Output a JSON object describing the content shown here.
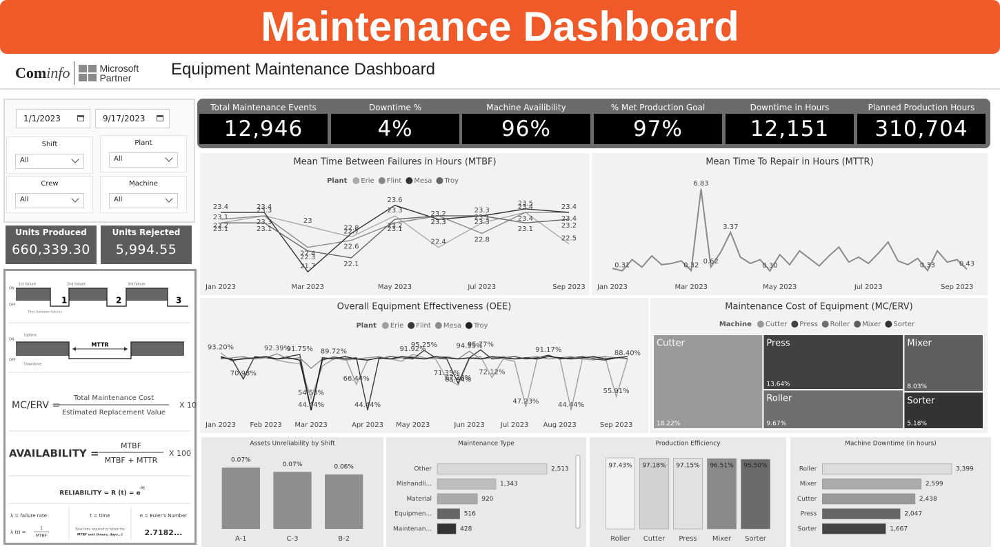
{
  "header": {
    "banner": "Maintenance Dashboard",
    "logo_left": "Com",
    "logo_italic": "info",
    "partner_1": "Microsoft",
    "partner_2": "Partner",
    "title": "Equipment Maintenance Dashboard"
  },
  "filters": {
    "start_date": "1/1/2023",
    "end_date": "9/17/2023",
    "slicers": [
      {
        "label": "Shift",
        "value": "All"
      },
      {
        "label": "Plant",
        "value": "All"
      },
      {
        "label": "Crew",
        "value": "All"
      },
      {
        "label": "Machine",
        "value": "All"
      }
    ]
  },
  "units": [
    {
      "label": "Units Produced",
      "value": "660,339.30"
    },
    {
      "label": "Units Rejected",
      "value": "5,994.55"
    }
  ],
  "kpis": [
    {
      "label": "Total Maintenance Events",
      "value": "12,946"
    },
    {
      "label": "Downtime %",
      "value": "4%"
    },
    {
      "label": "Machine Availibility",
      "value": "96%"
    },
    {
      "label": "% Met Production Goal",
      "value": "97%"
    },
    {
      "label": "Downtime in Hours",
      "value": "12,151"
    },
    {
      "label": "Planned Production Hours",
      "value": "310,704"
    }
  ],
  "formulas": {
    "on": "ON",
    "off": "OFF",
    "failure_1": "1st failure",
    "failure_2": "2nd failure",
    "failure_3": "3rd failure",
    "step_1": "1",
    "step_2": "2",
    "step_3": "3",
    "tbf": "Time between failures",
    "mttr": "MTTR",
    "uptime": "Uptime",
    "downtime": "Downtime",
    "mcerv": "MC/ERV =",
    "mc_num": "Total Maintenance Cost",
    "mc_den": "Estimated Replacement Value",
    "mc_mult": "X 100",
    "avail": "AVAILABILITY =",
    "av_num": "MTBF",
    "av_den": "MTBF + MTTR",
    "av_mult": "X 100",
    "reliability": "RELIABILITY = R (t) = e",
    "rel_exp": "-λt",
    "lambda": "λ = failure rate",
    "lambda_t": "λ (t) =",
    "lambda_num": "1",
    "lambda_den": "MTBF",
    "t": "t = time",
    "t_note_1": "Total time required to follow the",
    "t_note_2": "MTBF unit (hours, days...)",
    "e": "e = Euler's Number",
    "e_value": "2.7182..."
  },
  "chart_data": [
    {
      "type": "line",
      "title": "Mean Time Between Failures in Hours (MTBF)",
      "legend_title": "Plant",
      "data_labels": true,
      "categories": [
        "Jan 2023",
        null,
        "Mar 2023",
        null,
        "May 2023",
        null,
        "Jul 2023",
        null,
        "Sep 2023"
      ],
      "series": [
        {
          "name": "Erie",
          "color": "#aaaaaa",
          "values": [
            23.1,
            23.3,
            23.0,
            22.7,
            23.3,
            22.4,
            23.1,
            23.4,
            22.5
          ]
        },
        {
          "name": "Flint",
          "color": "#888888",
          "values": [
            23.2,
            23.3,
            22.4,
            22.6,
            23.1,
            23.3,
            22.8,
            23.4,
            23.4
          ]
        },
        {
          "name": "Mesa",
          "color": "#333333",
          "values": [
            23.4,
            23.4,
            21.7,
            22.8,
            23.6,
            23.2,
            23.3,
            23.5,
            23.4
          ]
        },
        {
          "name": "Troy",
          "color": "#666666",
          "values": [
            23.1,
            23.1,
            22.3,
            22.1,
            23.2,
            23.3,
            23.3,
            23.1,
            23.2
          ]
        }
      ]
    },
    {
      "type": "line",
      "title": "Mean Time To Repair in Hours (MTTR)",
      "categories": [
        "Jan 2023",
        null,
        null,
        null,
        null,
        null,
        null,
        null,
        "Mar 2023",
        null,
        null,
        null,
        null,
        null,
        null,
        null,
        null,
        "May 2023",
        null,
        null,
        null,
        null,
        null,
        null,
        null,
        null,
        "Jul 2023",
        null,
        null,
        null,
        null,
        null,
        null,
        null,
        null,
        "Sep 2023",
        null
      ],
      "series": [
        {
          "name": "MTTR",
          "color": "#8a8a8a",
          "values": [
            0.5,
            0.31,
            1.2,
            0.6,
            1.5,
            0.8,
            0.9,
            1.1,
            0.32,
            6.83,
            0.62,
            1.8,
            3.37,
            1.4,
            0.9,
            1.2,
            0.3,
            1.6,
            0.8,
            1.9,
            1.3,
            0.7,
            1.5,
            2.2,
            1.0,
            1.4,
            0.9,
            1.7,
            2.6,
            1.1,
            0.8,
            1.3,
            0.33,
            1.9,
            1.0,
            1.2,
            0.43
          ],
          "value_labels": [
            null,
            "0.31",
            null,
            null,
            null,
            null,
            null,
            null,
            "0.32",
            "6.83",
            "0.62",
            null,
            "3.37",
            null,
            null,
            null,
            "0.30",
            null,
            null,
            null,
            null,
            null,
            null,
            null,
            null,
            null,
            null,
            null,
            null,
            null,
            null,
            null,
            "0.33",
            null,
            null,
            null,
            "0.43"
          ]
        }
      ]
    },
    {
      "type": "line",
      "title": "Overall Equipment Effectiveness (OEE)",
      "legend_title": "Plant",
      "categories": [
        "Jan 2023",
        null,
        null,
        null,
        "Feb 2023",
        null,
        null,
        null,
        "Mar 2023",
        null,
        null,
        null,
        null,
        "Apr 2023",
        null,
        null,
        null,
        "May 2023",
        null,
        null,
        null,
        null,
        "Jun 2023",
        null,
        null,
        null,
        "Jul 2023",
        null,
        null,
        null,
        "Aug 2023",
        null,
        null,
        null,
        null,
        "Sep 2023",
        null
      ],
      "series": [
        {
          "name": "Erie",
          "color": "#a0a0a0",
          "values": [
            93.2,
            86,
            89,
            88,
            90,
            87,
            85,
            84,
            54.53,
            82,
            88,
            90,
            66.44,
            87,
            89,
            88,
            86,
            91.92,
            89,
            88,
            71.35,
            65.64,
            88,
            90,
            72.12,
            88,
            86,
            47.23,
            88,
            90,
            89,
            44.44,
            88,
            87,
            90,
            55.91,
            88
          ],
          "value_labels": [
            "93.20%",
            null,
            null,
            null,
            null,
            null,
            null,
            null,
            "54.53%",
            null,
            null,
            null,
            "66.44%",
            null,
            null,
            null,
            null,
            "91.92%",
            null,
            null,
            "71.35%",
            "65.64%",
            null,
            null,
            "72.12%",
            null,
            null,
            "47.23%",
            null,
            null,
            null,
            "44.44%",
            null,
            null,
            null,
            "55.91%",
            null
          ]
        },
        {
          "name": "Flint",
          "color": "#3a3a3a",
          "values": [
            89,
            88,
            70.98,
            90,
            89,
            88,
            90,
            91.75,
            44.44,
            87,
            89.72,
            88,
            89,
            44.44,
            88,
            90,
            89,
            88,
            95.25,
            89,
            88,
            67.28,
            89,
            95.77,
            88,
            89,
            90,
            88,
            89,
            91.17,
            88,
            89,
            90,
            88,
            87,
            89,
            88.4
          ],
          "value_labels": [
            null,
            null,
            "70.98%",
            null,
            null,
            null,
            null,
            "91.75%",
            "44.44%",
            null,
            "89.72%",
            null,
            null,
            "44.44%",
            null,
            null,
            null,
            null,
            "95.25%",
            null,
            null,
            "67.28%",
            null,
            "95.77%",
            null,
            null,
            null,
            null,
            null,
            "91.17%",
            null,
            null,
            null,
            null,
            null,
            null,
            "88.40%"
          ]
        },
        {
          "name": "Mesa",
          "color": "#8c8c8c",
          "values": [
            88,
            89,
            90,
            88,
            89,
            92.39,
            88,
            89,
            80,
            88,
            89,
            87,
            88,
            89,
            90,
            88,
            89,
            90,
            88,
            89,
            90,
            88,
            94.55,
            88,
            89,
            90,
            88,
            89,
            90,
            88,
            89,
            90,
            88,
            89,
            90,
            89,
            88
          ],
          "value_labels": [
            null,
            null,
            null,
            null,
            null,
            "92.39%",
            null,
            null,
            null,
            null,
            null,
            null,
            null,
            null,
            null,
            null,
            null,
            null,
            null,
            null,
            null,
            null,
            "94.55%",
            null,
            null,
            null,
            null,
            null,
            null,
            null,
            null,
            null,
            null,
            null,
            null,
            null,
            null
          ]
        },
        {
          "name": "Troy",
          "color": "#222222",
          "values": [
            90,
            87,
            88,
            89,
            90,
            88,
            89,
            87,
            44.44,
            89,
            88,
            90,
            88,
            87,
            89,
            88,
            90,
            89,
            88,
            90,
            89,
            88,
            89,
            88,
            90,
            89,
            88,
            89,
            88,
            90,
            89,
            88,
            89,
            90,
            88,
            89,
            90
          ]
        }
      ]
    },
    {
      "type": "treemap",
      "title": "Maintenance Cost of Equipment (MC/ERV)",
      "legend_title": "Machine",
      "categories": [
        "Cutter",
        "Press",
        "Roller",
        "Mixer",
        "Sorter"
      ],
      "values": [
        18.22,
        13.64,
        9.67,
        8.03,
        5.18
      ],
      "value_labels": [
        "18.22%",
        "13.64%",
        "9.67%",
        "8.03%",
        "5.18%"
      ],
      "colors": [
        "#9a9a9a",
        "#404040",
        "#6e6e6e",
        "#5f5f5f",
        "#333333"
      ]
    },
    {
      "type": "bar",
      "title": "Assets Unreliability by Shift",
      "categories": [
        "A-1",
        "C-3",
        "B-2"
      ],
      "values": [
        0.071,
        0.066,
        0.063
      ],
      "value_labels": [
        "0.07%",
        "0.07%",
        "0.06%"
      ],
      "color": "#8e8e8e"
    },
    {
      "type": "bar",
      "orientation": "horizontal",
      "title": "Maintenance Type",
      "scrollbar": true,
      "categories": [
        "Other",
        "Mishandli...",
        "Material",
        "Equipmen...",
        "Maintenan..."
      ],
      "values": [
        2513,
        1343,
        920,
        516,
        428
      ],
      "value_labels": [
        "2,513",
        "1,343",
        "920",
        "516",
        "428"
      ],
      "colors": [
        "#d9d9d9",
        "#bdbdbd",
        "#a9a9a9",
        "#666666",
        "#333333"
      ]
    },
    {
      "type": "bar",
      "title": "Production Efficiency",
      "label_position": "inside",
      "categories": [
        "Roller",
        "Cutter",
        "Press",
        "Mixer",
        "Sorter"
      ],
      "values": [
        97.43,
        97.18,
        97.15,
        96.51,
        95.5
      ],
      "value_labels": [
        "97.43%",
        "97.18%",
        "97.15%",
        "96.51%",
        "95.50%"
      ],
      "colors": [
        "#f2f2f2",
        "#d2d2d2",
        "#e2e2e2",
        "#8a8a8a",
        "#6a6a6a"
      ]
    },
    {
      "type": "bar",
      "orientation": "horizontal",
      "title": "Machine Downtime (in hours)",
      "categories": [
        "Roller",
        "Mixer",
        "Cutter",
        "Press",
        "Sorter"
      ],
      "values": [
        3399,
        2599,
        2438,
        2047,
        1667
      ],
      "value_labels": [
        "3,399",
        "2,599",
        "2,438",
        "2,047",
        "1,667"
      ],
      "colors": [
        "#dcdcdc",
        "#ababab",
        "#999999",
        "#666666",
        "#444444"
      ]
    }
  ]
}
